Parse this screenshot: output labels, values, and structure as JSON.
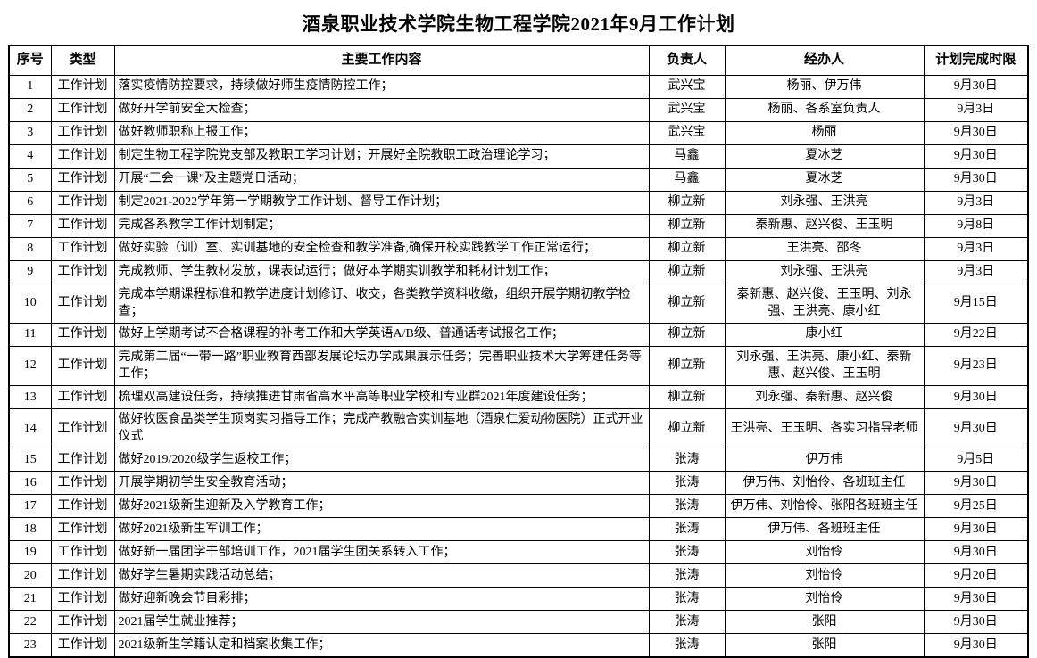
{
  "title": "酒泉职业技术学院生物工程学院2021年9月工作计划",
  "table": {
    "headers": [
      "序号",
      "类型",
      "主要工作内容",
      "负责人",
      "经办人",
      "计划完成时限"
    ],
    "rows": [
      [
        "1",
        "工作计划",
        "落实疫情防控要求，持续做好师生疫情防控工作；",
        "武兴宝",
        "杨丽、伊万伟",
        "9月30日"
      ],
      [
        "2",
        "工作计划",
        "做好开学前安全大检查；",
        "武兴宝",
        "杨丽、各系室负责人",
        "9月3日"
      ],
      [
        "3",
        "工作计划",
        "做好教师职称上报工作；",
        "武兴宝",
        "杨丽",
        "9月30日"
      ],
      [
        "4",
        "工作计划",
        "制定生物工程学院党支部及教职工学习计划；开展好全院教职工政治理论学习；",
        "马鑫",
        "夏冰芝",
        "9月30日"
      ],
      [
        "5",
        "工作计划",
        "开展“三会一课”及主题党日活动；",
        "马鑫",
        "夏冰芝",
        "9月30日"
      ],
      [
        "6",
        "工作计划",
        "制定2021-2022学年第一学期教学工作计划、督导工作计划；",
        "柳立新",
        "刘永强、王洪亮",
        "9月3日"
      ],
      [
        "7",
        "工作计划",
        "完成各系教学工作计划制定；",
        "柳立新",
        "秦新惠、赵兴俊、王玉明",
        "9月8日"
      ],
      [
        "8",
        "工作计划",
        "做好实验（训）室、实训基地的安全检查和教学准备,确保开校实践教学工作正常运行；",
        "柳立新",
        "王洪亮、邵冬",
        "9月3日"
      ],
      [
        "9",
        "工作计划",
        "完成教师、学生教材发放，课表试运行；做好本学期实训教学和耗材计划工作；",
        "柳立新",
        "刘永强、王洪亮",
        "9月3日"
      ],
      [
        "10",
        "工作计划",
        "完成本学期课程标准和教学进度计划修订、收交，各类教学资料收缴，组织开展学期初教学检查；",
        "柳立新",
        "秦新惠、赵兴俊、王玉明、刘永强、王洪亮、康小红",
        "9月15日"
      ],
      [
        "11",
        "工作计划",
        "做好上学期考试不合格课程的补考工作和大学英语A/B级、普通话考试报名工作；",
        "柳立新",
        "康小红",
        "9月22日"
      ],
      [
        "12",
        "工作计划",
        "完成第二届“一带一路”职业教育西部发展论坛办学成果展示任务；完善职业技术大学筹建任务等工作；",
        "柳立新",
        "刘永强、王洪亮、康小红、秦新惠、赵兴俊、王玉明",
        "9月23日"
      ],
      [
        "13",
        "工作计划",
        "梳理双高建设任务，持续推进甘肃省高水平高等职业学校和专业群2021年度建设任务；",
        "柳立新",
        "刘永强、秦新惠、赵兴俊",
        "9月30日"
      ],
      [
        "14",
        "工作计划",
        "做好牧医食品类学生顶岗实习指导工作；完成产教融合实训基地（酒泉仁爱动物医院）正式开业仪式",
        "柳立新",
        "王洪亮、王玉明、各实习指导老师",
        "9月30日"
      ],
      [
        "15",
        "工作计划",
        "做好2019/2020级学生返校工作；",
        "张涛",
        "伊万伟",
        "9月5日"
      ],
      [
        "16",
        "工作计划",
        "开展学期初学生安全教育活动；",
        "张涛",
        "伊万伟、刘怡伶、各班班主任",
        "9月30日"
      ],
      [
        "17",
        "工作计划",
        "做好2021级新生迎新及入学教育工作；",
        "张涛",
        "伊万伟、刘怡伶、张阳各班班主任",
        "9月25日"
      ],
      [
        "18",
        "工作计划",
        "做好2021级新生军训工作；",
        "张涛",
        "伊万伟、各班班主任",
        "9月30日"
      ],
      [
        "19",
        "工作计划",
        "做好新一届团学干部培训工作，2021届学生团关系转入工作；",
        "张涛",
        "刘怡伶",
        "9月30日"
      ],
      [
        "20",
        "工作计划",
        "做好学生暑期实践活动总结；",
        "张涛",
        "刘怡伶",
        "9月20日"
      ],
      [
        "21",
        "工作计划",
        "做好迎新晚会节目彩排；",
        "张涛",
        "刘怡伶",
        "9月30日"
      ],
      [
        "22",
        "工作计划",
        "2021届学生就业推荐；",
        "张涛",
        "张阳",
        "9月30日"
      ],
      [
        "23",
        "工作计划",
        "2021级新生学籍认定和档案收集工作；",
        "张涛",
        "张阳",
        "9月30日"
      ]
    ]
  }
}
